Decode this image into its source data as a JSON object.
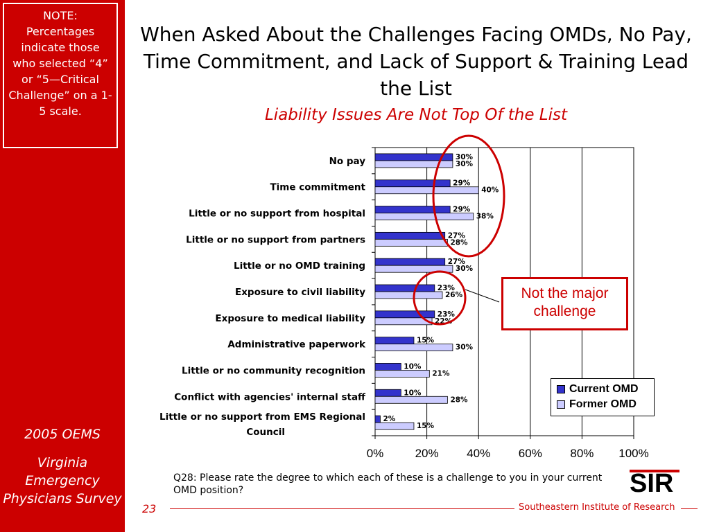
{
  "sidebar": {
    "note": "NOTE: Percentages indicate those who selected “4” or “5—Critical Challenge” on a 1-5 scale.",
    "year": "2005 OEMS",
    "survey": "Virginia Emergency Physicians Survey"
  },
  "colors": {
    "sidebar": "#cc0000",
    "current": "#3333cc",
    "former": "#ccccff",
    "accent": "#cc0000"
  },
  "chart_data": {
    "type": "bar",
    "orientation": "horizontal",
    "title": "When Asked About the Challenges Facing OMDs, No Pay, Time Commitment, and Lack of Support & Training Lead the List",
    "subtitle": "Liability Issues Are Not Top Of the List",
    "categories": [
      "No pay",
      "Time commitment",
      "Little or no support from hospital",
      "Little or no support from partners",
      "Little or no OMD training",
      "Exposure to civil liability",
      "Exposure to medical liability",
      "Administrative paperwork",
      "Little or no community recognition",
      "Conflict with agencies' internal staff",
      "Little or no support from EMS Regional Council"
    ],
    "series": [
      {
        "name": "Current OMD",
        "values": [
          30,
          29,
          29,
          27,
          27,
          23,
          23,
          15,
          10,
          10,
          2
        ]
      },
      {
        "name": "Former OMD",
        "values": [
          30,
          40,
          38,
          28,
          30,
          26,
          22,
          30,
          21,
          28,
          15
        ]
      }
    ],
    "xlim": [
      0,
      100
    ],
    "xticks": [
      "0%",
      "20%",
      "40%",
      "60%",
      "80%",
      "100%"
    ],
    "grid": true,
    "legend_position": "bottom-right",
    "annotation": "Not the major challenge"
  },
  "footer": {
    "question": "Q28: Please rate the degree to which each of these is a challenge to you in your current OMD position?",
    "page": "23",
    "org": "Southeastern Institute of Research",
    "logo_text": "SIR"
  }
}
